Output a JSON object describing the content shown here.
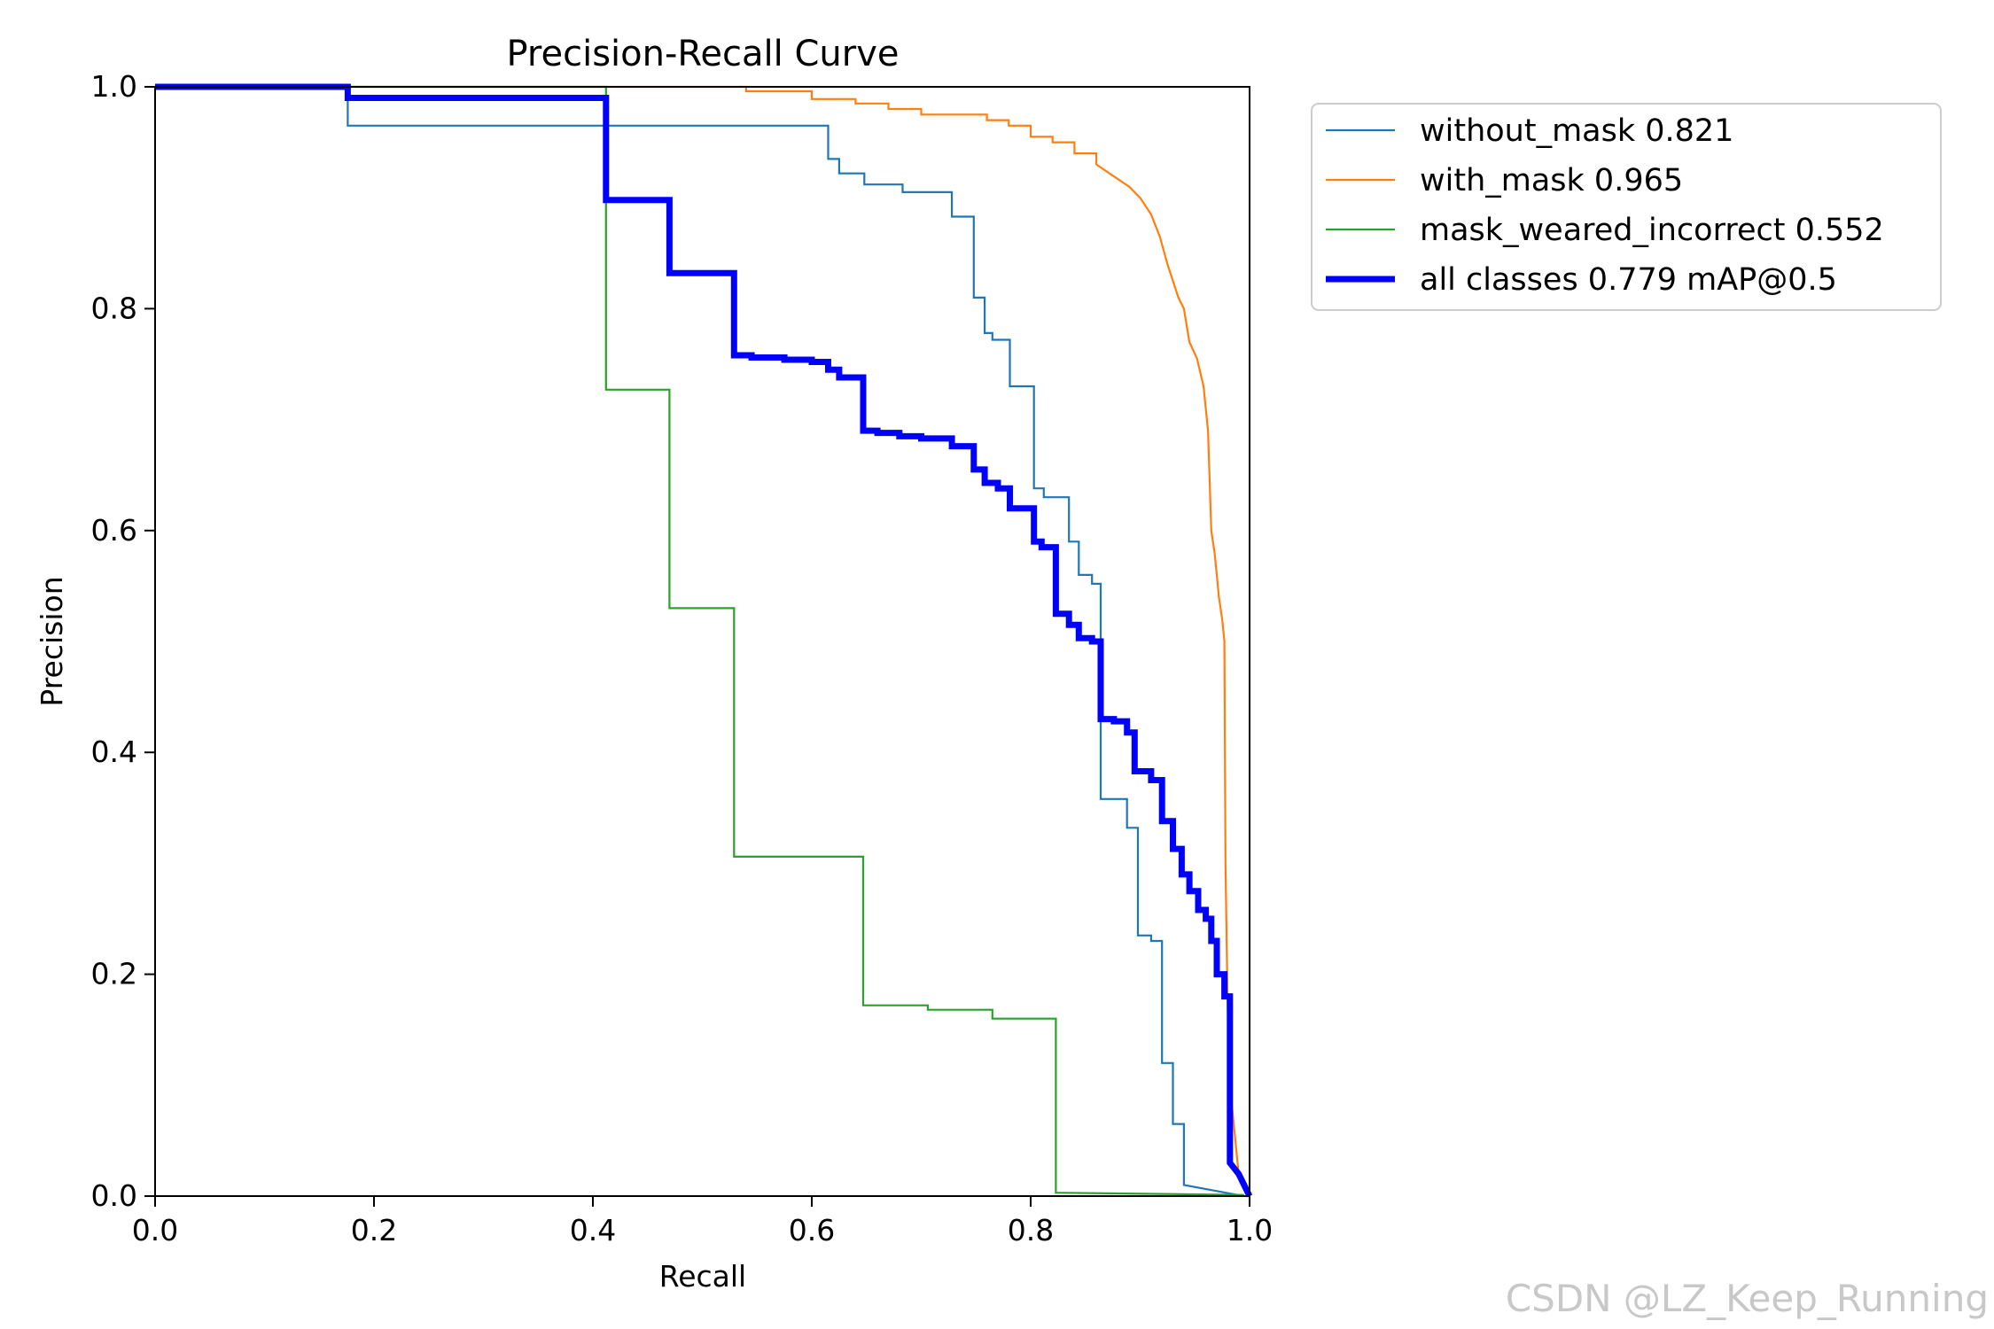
{
  "chart_data": {
    "type": "line",
    "title": "Precision-Recall Curve",
    "xlabel": "Recall",
    "ylabel": "Precision",
    "xlim": [
      0,
      1
    ],
    "ylim": [
      0,
      1
    ],
    "xticks": [
      "0.0",
      "0.2",
      "0.4",
      "0.6",
      "0.8",
      "1.0"
    ],
    "yticks": [
      "0.0",
      "0.2",
      "0.4",
      "0.6",
      "0.8",
      "1.0"
    ],
    "grid": false,
    "legend_position": "outside-top-right",
    "series": [
      {
        "name": "without_mask 0.821",
        "color": "#1f77b4",
        "width": "thin",
        "points": [
          [
            0,
            1.0
          ],
          [
            0.176,
            1.0
          ],
          [
            0.176,
            0.965
          ],
          [
            0.615,
            0.965
          ],
          [
            0.615,
            0.935
          ],
          [
            0.625,
            0.935
          ],
          [
            0.625,
            0.922
          ],
          [
            0.648,
            0.922
          ],
          [
            0.648,
            0.912
          ],
          [
            0.683,
            0.912
          ],
          [
            0.683,
            0.905
          ],
          [
            0.728,
            0.905
          ],
          [
            0.728,
            0.883
          ],
          [
            0.748,
            0.883
          ],
          [
            0.748,
            0.81
          ],
          [
            0.758,
            0.81
          ],
          [
            0.758,
            0.778
          ],
          [
            0.765,
            0.778
          ],
          [
            0.765,
            0.772
          ],
          [
            0.781,
            0.772
          ],
          [
            0.781,
            0.73
          ],
          [
            0.803,
            0.73
          ],
          [
            0.803,
            0.638
          ],
          [
            0.812,
            0.638
          ],
          [
            0.812,
            0.63
          ],
          [
            0.835,
            0.63
          ],
          [
            0.835,
            0.59
          ],
          [
            0.844,
            0.59
          ],
          [
            0.844,
            0.56
          ],
          [
            0.856,
            0.56
          ],
          [
            0.856,
            0.552
          ],
          [
            0.864,
            0.552
          ],
          [
            0.864,
            0.358
          ],
          [
            0.888,
            0.358
          ],
          [
            0.888,
            0.332
          ],
          [
            0.898,
            0.332
          ],
          [
            0.898,
            0.235
          ],
          [
            0.91,
            0.235
          ],
          [
            0.91,
            0.23
          ],
          [
            0.92,
            0.23
          ],
          [
            0.92,
            0.12
          ],
          [
            0.93,
            0.12
          ],
          [
            0.93,
            0.065
          ],
          [
            0.94,
            0.065
          ],
          [
            0.94,
            0.01
          ],
          [
            0.995,
            0.0
          ]
        ]
      },
      {
        "name": "with_mask 0.965",
        "color": "#ff7f0e",
        "width": "thin",
        "points": [
          [
            0,
            1.0
          ],
          [
            0.54,
            1.0
          ],
          [
            0.54,
            0.996
          ],
          [
            0.6,
            0.996
          ],
          [
            0.6,
            0.989
          ],
          [
            0.64,
            0.989
          ],
          [
            0.64,
            0.985
          ],
          [
            0.67,
            0.985
          ],
          [
            0.67,
            0.98
          ],
          [
            0.7,
            0.98
          ],
          [
            0.7,
            0.975
          ],
          [
            0.76,
            0.975
          ],
          [
            0.76,
            0.97
          ],
          [
            0.78,
            0.97
          ],
          [
            0.78,
            0.965
          ],
          [
            0.8,
            0.965
          ],
          [
            0.8,
            0.955
          ],
          [
            0.82,
            0.955
          ],
          [
            0.82,
            0.95
          ],
          [
            0.84,
            0.95
          ],
          [
            0.84,
            0.94
          ],
          [
            0.86,
            0.94
          ],
          [
            0.86,
            0.93
          ],
          [
            0.875,
            0.92
          ],
          [
            0.89,
            0.91
          ],
          [
            0.9,
            0.9
          ],
          [
            0.91,
            0.885
          ],
          [
            0.918,
            0.865
          ],
          [
            0.925,
            0.84
          ],
          [
            0.935,
            0.81
          ],
          [
            0.94,
            0.8
          ],
          [
            0.945,
            0.77
          ],
          [
            0.952,
            0.755
          ],
          [
            0.958,
            0.73
          ],
          [
            0.962,
            0.69
          ],
          [
            0.965,
            0.6
          ],
          [
            0.968,
            0.58
          ],
          [
            0.97,
            0.56
          ],
          [
            0.972,
            0.54
          ],
          [
            0.975,
            0.52
          ],
          [
            0.977,
            0.5
          ],
          [
            0.978,
            0.3
          ],
          [
            0.98,
            0.17
          ],
          [
            0.982,
            0.1
          ],
          [
            0.99,
            0.02
          ],
          [
            1.0,
            0.0
          ]
        ]
      },
      {
        "name": "mask_weared_incorrect 0.552",
        "color": "#2ca02c",
        "width": "thin",
        "points": [
          [
            0,
            1.0
          ],
          [
            0.412,
            1.0
          ],
          [
            0.412,
            0.727
          ],
          [
            0.47,
            0.727
          ],
          [
            0.47,
            0.53
          ],
          [
            0.529,
            0.53
          ],
          [
            0.529,
            0.306
          ],
          [
            0.647,
            0.306
          ],
          [
            0.647,
            0.172
          ],
          [
            0.706,
            0.172
          ],
          [
            0.706,
            0.168
          ],
          [
            0.765,
            0.168
          ],
          [
            0.765,
            0.16
          ],
          [
            0.823,
            0.16
          ],
          [
            0.823,
            0.003
          ],
          [
            0.995,
            0.001
          ]
        ]
      },
      {
        "name": "all classes 0.779 mAP@0.5",
        "color": "#0000ff",
        "width": "thick",
        "points": [
          [
            0,
            1.0
          ],
          [
            0.176,
            1.0
          ],
          [
            0.176,
            0.99
          ],
          [
            0.412,
            0.99
          ],
          [
            0.412,
            0.898
          ],
          [
            0.47,
            0.898
          ],
          [
            0.47,
            0.832
          ],
          [
            0.529,
            0.832
          ],
          [
            0.529,
            0.758
          ],
          [
            0.545,
            0.758
          ],
          [
            0.545,
            0.756
          ],
          [
            0.575,
            0.756
          ],
          [
            0.575,
            0.754
          ],
          [
            0.6,
            0.754
          ],
          [
            0.6,
            0.752
          ],
          [
            0.615,
            0.752
          ],
          [
            0.615,
            0.745
          ],
          [
            0.625,
            0.745
          ],
          [
            0.625,
            0.738
          ],
          [
            0.647,
            0.738
          ],
          [
            0.647,
            0.69
          ],
          [
            0.66,
            0.69
          ],
          [
            0.66,
            0.688
          ],
          [
            0.68,
            0.688
          ],
          [
            0.68,
            0.685
          ],
          [
            0.7,
            0.685
          ],
          [
            0.7,
            0.683
          ],
          [
            0.728,
            0.683
          ],
          [
            0.728,
            0.676
          ],
          [
            0.748,
            0.676
          ],
          [
            0.748,
            0.655
          ],
          [
            0.758,
            0.655
          ],
          [
            0.758,
            0.643
          ],
          [
            0.77,
            0.643
          ],
          [
            0.77,
            0.638
          ],
          [
            0.781,
            0.638
          ],
          [
            0.781,
            0.62
          ],
          [
            0.803,
            0.62
          ],
          [
            0.803,
            0.59
          ],
          [
            0.81,
            0.59
          ],
          [
            0.81,
            0.585
          ],
          [
            0.823,
            0.585
          ],
          [
            0.823,
            0.525
          ],
          [
            0.835,
            0.525
          ],
          [
            0.835,
            0.515
          ],
          [
            0.844,
            0.515
          ],
          [
            0.844,
            0.503
          ],
          [
            0.856,
            0.503
          ],
          [
            0.856,
            0.5
          ],
          [
            0.864,
            0.5
          ],
          [
            0.864,
            0.43
          ],
          [
            0.876,
            0.43
          ],
          [
            0.876,
            0.428
          ],
          [
            0.888,
            0.428
          ],
          [
            0.888,
            0.418
          ],
          [
            0.895,
            0.418
          ],
          [
            0.895,
            0.383
          ],
          [
            0.91,
            0.383
          ],
          [
            0.91,
            0.375
          ],
          [
            0.92,
            0.375
          ],
          [
            0.92,
            0.338
          ],
          [
            0.93,
            0.338
          ],
          [
            0.93,
            0.313
          ],
          [
            0.938,
            0.313
          ],
          [
            0.938,
            0.29
          ],
          [
            0.945,
            0.29
          ],
          [
            0.945,
            0.275
          ],
          [
            0.953,
            0.275
          ],
          [
            0.953,
            0.258
          ],
          [
            0.96,
            0.258
          ],
          [
            0.96,
            0.25
          ],
          [
            0.965,
            0.25
          ],
          [
            0.965,
            0.23
          ],
          [
            0.97,
            0.23
          ],
          [
            0.97,
            0.2
          ],
          [
            0.977,
            0.2
          ],
          [
            0.977,
            0.18
          ],
          [
            0.982,
            0.18
          ],
          [
            0.982,
            0.03
          ],
          [
            0.99,
            0.02
          ],
          [
            1.0,
            0.0
          ]
        ]
      }
    ]
  },
  "watermark": "CSDN @LZ_Keep_Running"
}
